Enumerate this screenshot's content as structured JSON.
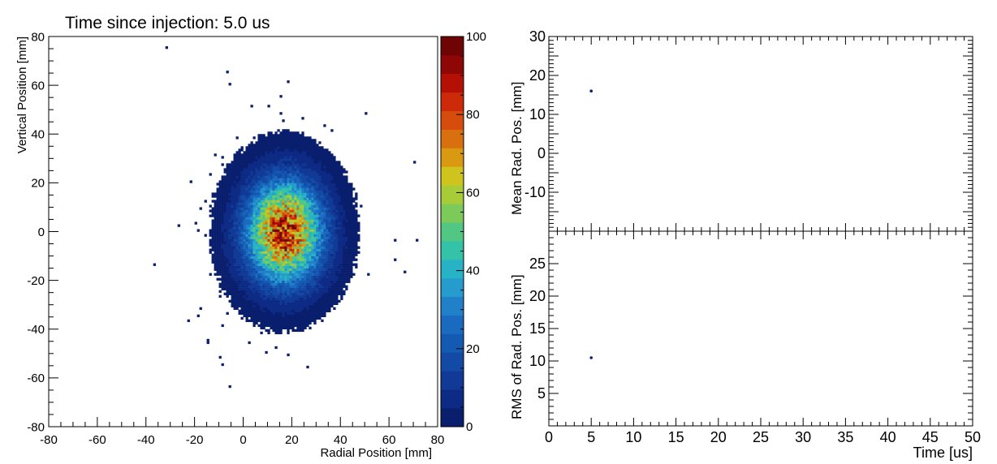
{
  "chart_data": [
    {
      "type": "heatmap",
      "title": "Time since injection: 5.0 us",
      "xlabel": "Radial Position [mm]",
      "ylabel": "Vertical Position [mm]",
      "xlim": [
        -80,
        80
      ],
      "ylim": [
        -80,
        80
      ],
      "x_ticks": [
        -80,
        -60,
        -40,
        -20,
        0,
        20,
        40,
        60,
        80
      ],
      "y_ticks": [
        -80,
        -60,
        -40,
        -20,
        0,
        20,
        40,
        60,
        80
      ],
      "bin_width_mm": 1,
      "distribution": {
        "center_x": 17,
        "center_y": 0,
        "sigma_x": 10.5,
        "sigma_y": 14,
        "peak_count": 85,
        "sparse_tail": "left"
      },
      "colorbar": {
        "zlim": [
          0,
          100
        ],
        "ticks": [
          0,
          20,
          40,
          60,
          80,
          100
        ],
        "colors": [
          "#0a1e6e",
          "#0d2b85",
          "#103a96",
          "#124aa5",
          "#145ab2",
          "#1a6ac0",
          "#2080c8",
          "#259ccd",
          "#28b2c6",
          "#34c2a8",
          "#52c784",
          "#7ccb5a",
          "#a8cc38",
          "#cfc41e",
          "#d99a12",
          "#d87010",
          "#d54c0c",
          "#cc2a08",
          "#b51006",
          "#8f0606",
          "#6e0404"
        ]
      }
    },
    {
      "type": "scatter",
      "ylabel": "Mean Rad. Pos. [mm]",
      "xlim": [
        0,
        50
      ],
      "ylim": [
        -20,
        30
      ],
      "y_ticks": [
        -10,
        0,
        10,
        20,
        30
      ],
      "points": [
        {
          "x": 5,
          "y": 16
        }
      ]
    },
    {
      "type": "scatter",
      "xlabel": "Time [us]",
      "ylabel": "RMS of Rad. Pos. [mm]",
      "xlim": [
        0,
        50
      ],
      "ylim": [
        0,
        30
      ],
      "x_ticks": [
        0,
        5,
        10,
        15,
        20,
        25,
        30,
        35,
        40,
        45,
        50
      ],
      "y_ticks": [
        5,
        10,
        15,
        20,
        25
      ],
      "points": [
        {
          "x": 5,
          "y": 10.5
        }
      ]
    }
  ]
}
